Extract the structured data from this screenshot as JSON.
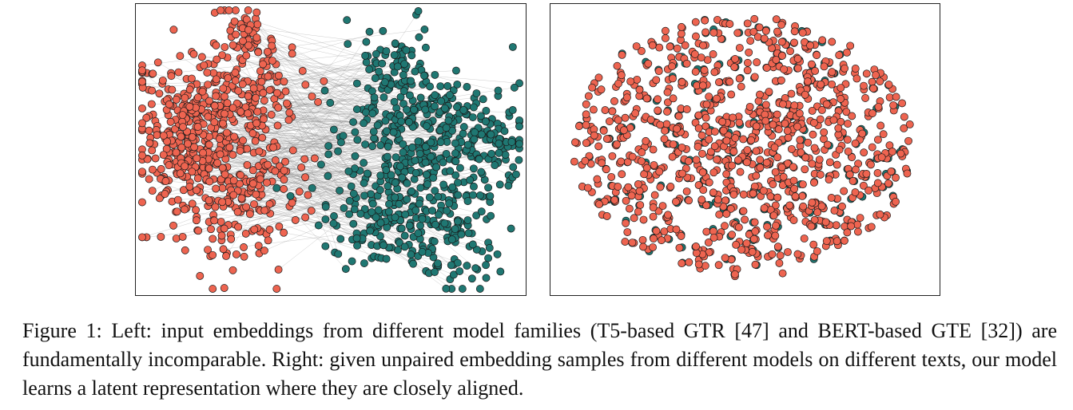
{
  "figure": {
    "caption": "Figure 1: Left: input embeddings from different model families (T5-based GTR [47] and BERT-based GTE [32]) are fundamentally incomparable. Right: given unpaired embedding samples from different models on different texts, our model learns a latent representation where they are closely aligned.",
    "colors": {
      "gtr": "#ee6450",
      "gte": "#1f7772",
      "link": "#8c8c8c",
      "point_edge": "#1a1a1a",
      "frame": "#222222"
    },
    "left_panel": {
      "description_key": "input-embeddings",
      "point_count_per_model": 700
    },
    "right_panel": {
      "description_key": "aligned-latent",
      "point_count": 900
    }
  }
}
